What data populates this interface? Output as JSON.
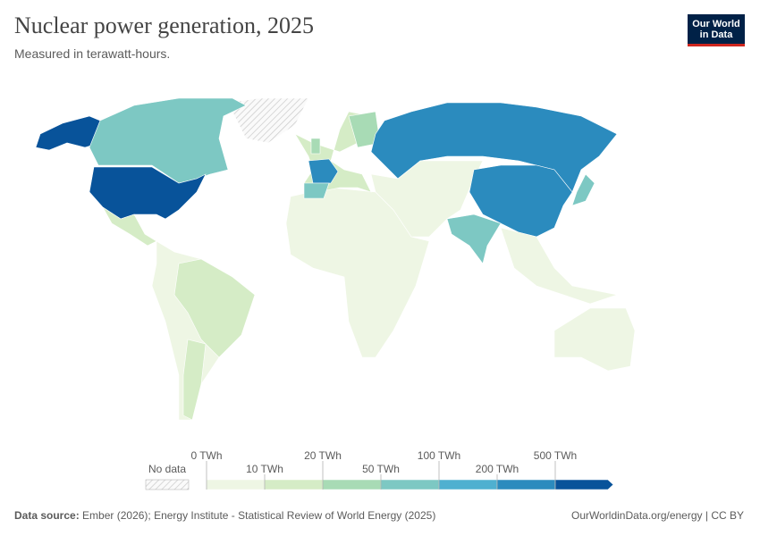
{
  "header": {
    "title": "Nuclear power generation, 2025",
    "subtitle": "Measured in terawatt-hours.",
    "logo": [
      "Our World",
      "in Data"
    ]
  },
  "legend": {
    "no_data": "No data",
    "ticks": [
      {
        "value": 0,
        "label": "0 TWh"
      },
      {
        "value": 10,
        "label": "10 TWh"
      },
      {
        "value": 20,
        "label": "20 TWh"
      },
      {
        "value": 50,
        "label": "50 TWh"
      },
      {
        "value": 100,
        "label": "100 TWh"
      },
      {
        "value": 200,
        "label": "200 TWh"
      },
      {
        "value": 500,
        "label": "500 TWh"
      }
    ],
    "colors": [
      "#eef6e4",
      "#d5ecc6",
      "#a8dbb5",
      "#7dc8c3",
      "#4fb0d0",
      "#2b8bbe",
      "#08539a"
    ]
  },
  "footer": {
    "source_label": "Data source:",
    "source": "Ember (2026); Energy Institute - Statistical Review of World Energy (2025)",
    "url": "OurWorldinData.org/energy | CC BY"
  }
}
